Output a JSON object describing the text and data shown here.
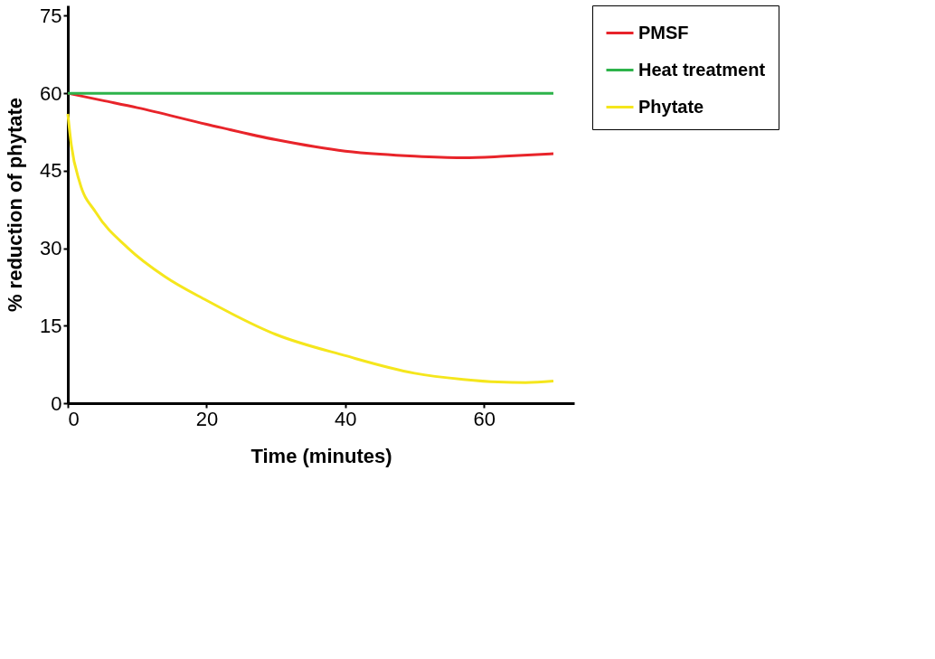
{
  "chart_data": {
    "type": "line",
    "xlabel": "Time  (minutes)",
    "ylabel": "% reduction of phytate",
    "xlim": [
      0,
      73
    ],
    "ylim": [
      0,
      77
    ],
    "xticks": [
      0,
      20,
      40,
      60
    ],
    "yticks": [
      0,
      15,
      30,
      45,
      60,
      75
    ],
    "grid": false,
    "legend": "top right",
    "marker": "none",
    "line_style": "solid",
    "series": [
      {
        "name": "PMSF",
        "color": "#e8242a",
        "x": [
          0,
          5,
          10,
          20,
          30,
          40,
          45,
          50,
          57,
          63,
          70
        ],
        "values": [
          60,
          58.6,
          57.2,
          54,
          51,
          48.8,
          48.2,
          47.8,
          47.5,
          47.8,
          48.3
        ]
      },
      {
        "name": "Heat treatment",
        "color": "#2db34a",
        "x": [
          0,
          70
        ],
        "values": [
          60,
          60
        ]
      },
      {
        "name": "Phytate",
        "color": "#f5e61c",
        "x": [
          0,
          0.5,
          1.7,
          4,
          8.7,
          14,
          20,
          30,
          40,
          50,
          57,
          62,
          66,
          70
        ],
        "values": [
          56,
          50,
          42.8,
          37,
          30,
          24.5,
          19.9,
          13.3,
          9.2,
          5.8,
          4.6,
          4.1,
          4,
          4.3
        ]
      }
    ]
  }
}
